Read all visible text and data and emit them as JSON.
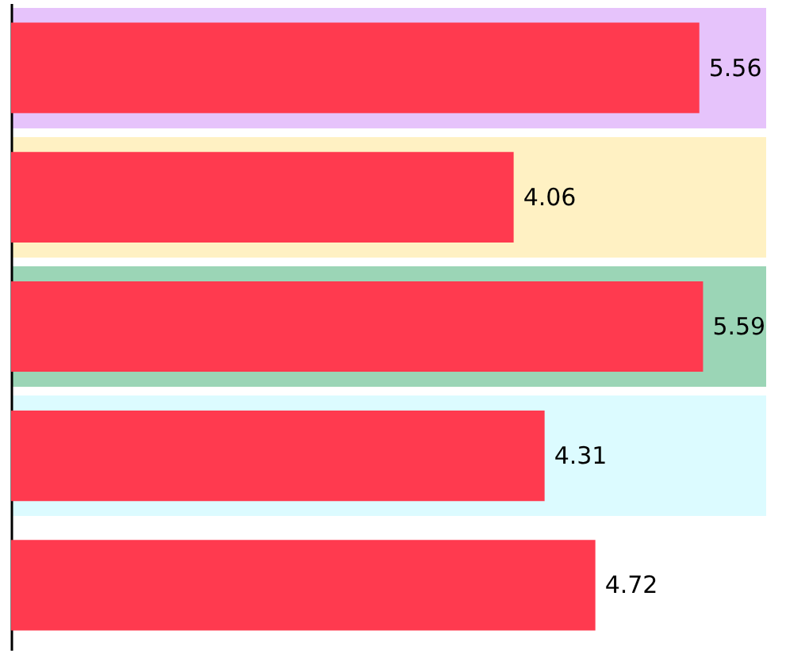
{
  "chart_data": {
    "type": "bar",
    "orientation": "horizontal",
    "categories": [
      null,
      null,
      null,
      null,
      null
    ],
    "values": [
      5.56,
      4.06,
      5.59,
      4.31,
      4.72
    ],
    "color": "#ff3a4f",
    "xlim": [
      0,
      6.1
    ],
    "tick_labels": false,
    "grid": false,
    "data_labels": true
  }
}
